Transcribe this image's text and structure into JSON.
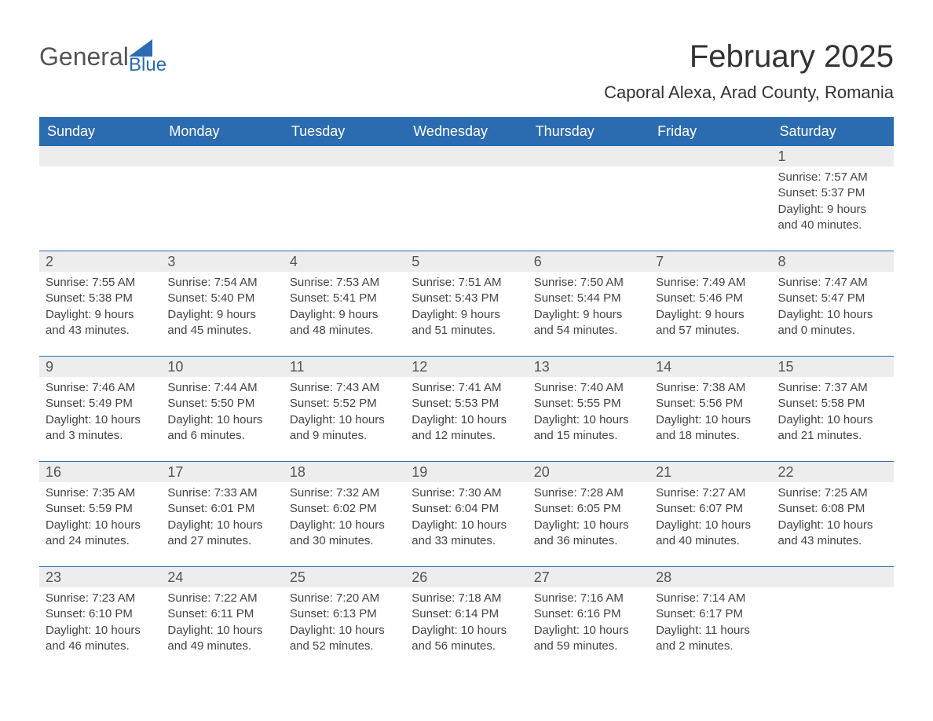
{
  "logo": {
    "part1": "General",
    "part2": "Blue"
  },
  "title": "February 2025",
  "subtitle": "Caporal Alexa, Arad County, Romania",
  "colors": {
    "header_bg": "#2b6cb0",
    "header_text": "#ffffff",
    "daynum_bg": "#ededed",
    "body_text": "#444444",
    "rule": "#2b6cb0",
    "page_bg": "#ffffff"
  },
  "weekdays": [
    "Sunday",
    "Monday",
    "Tuesday",
    "Wednesday",
    "Thursday",
    "Friday",
    "Saturday"
  ],
  "weeks": [
    [
      null,
      null,
      null,
      null,
      null,
      null,
      {
        "n": "1",
        "sr": "Sunrise: 7:57 AM",
        "ss": "Sunset: 5:37 PM",
        "d1": "Daylight: 9 hours",
        "d2": "and 40 minutes."
      }
    ],
    [
      {
        "n": "2",
        "sr": "Sunrise: 7:55 AM",
        "ss": "Sunset: 5:38 PM",
        "d1": "Daylight: 9 hours",
        "d2": "and 43 minutes."
      },
      {
        "n": "3",
        "sr": "Sunrise: 7:54 AM",
        "ss": "Sunset: 5:40 PM",
        "d1": "Daylight: 9 hours",
        "d2": "and 45 minutes."
      },
      {
        "n": "4",
        "sr": "Sunrise: 7:53 AM",
        "ss": "Sunset: 5:41 PM",
        "d1": "Daylight: 9 hours",
        "d2": "and 48 minutes."
      },
      {
        "n": "5",
        "sr": "Sunrise: 7:51 AM",
        "ss": "Sunset: 5:43 PM",
        "d1": "Daylight: 9 hours",
        "d2": "and 51 minutes."
      },
      {
        "n": "6",
        "sr": "Sunrise: 7:50 AM",
        "ss": "Sunset: 5:44 PM",
        "d1": "Daylight: 9 hours",
        "d2": "and 54 minutes."
      },
      {
        "n": "7",
        "sr": "Sunrise: 7:49 AM",
        "ss": "Sunset: 5:46 PM",
        "d1": "Daylight: 9 hours",
        "d2": "and 57 minutes."
      },
      {
        "n": "8",
        "sr": "Sunrise: 7:47 AM",
        "ss": "Sunset: 5:47 PM",
        "d1": "Daylight: 10 hours",
        "d2": "and 0 minutes."
      }
    ],
    [
      {
        "n": "9",
        "sr": "Sunrise: 7:46 AM",
        "ss": "Sunset: 5:49 PM",
        "d1": "Daylight: 10 hours",
        "d2": "and 3 minutes."
      },
      {
        "n": "10",
        "sr": "Sunrise: 7:44 AM",
        "ss": "Sunset: 5:50 PM",
        "d1": "Daylight: 10 hours",
        "d2": "and 6 minutes."
      },
      {
        "n": "11",
        "sr": "Sunrise: 7:43 AM",
        "ss": "Sunset: 5:52 PM",
        "d1": "Daylight: 10 hours",
        "d2": "and 9 minutes."
      },
      {
        "n": "12",
        "sr": "Sunrise: 7:41 AM",
        "ss": "Sunset: 5:53 PM",
        "d1": "Daylight: 10 hours",
        "d2": "and 12 minutes."
      },
      {
        "n": "13",
        "sr": "Sunrise: 7:40 AM",
        "ss": "Sunset: 5:55 PM",
        "d1": "Daylight: 10 hours",
        "d2": "and 15 minutes."
      },
      {
        "n": "14",
        "sr": "Sunrise: 7:38 AM",
        "ss": "Sunset: 5:56 PM",
        "d1": "Daylight: 10 hours",
        "d2": "and 18 minutes."
      },
      {
        "n": "15",
        "sr": "Sunrise: 7:37 AM",
        "ss": "Sunset: 5:58 PM",
        "d1": "Daylight: 10 hours",
        "d2": "and 21 minutes."
      }
    ],
    [
      {
        "n": "16",
        "sr": "Sunrise: 7:35 AM",
        "ss": "Sunset: 5:59 PM",
        "d1": "Daylight: 10 hours",
        "d2": "and 24 minutes."
      },
      {
        "n": "17",
        "sr": "Sunrise: 7:33 AM",
        "ss": "Sunset: 6:01 PM",
        "d1": "Daylight: 10 hours",
        "d2": "and 27 minutes."
      },
      {
        "n": "18",
        "sr": "Sunrise: 7:32 AM",
        "ss": "Sunset: 6:02 PM",
        "d1": "Daylight: 10 hours",
        "d2": "and 30 minutes."
      },
      {
        "n": "19",
        "sr": "Sunrise: 7:30 AM",
        "ss": "Sunset: 6:04 PM",
        "d1": "Daylight: 10 hours",
        "d2": "and 33 minutes."
      },
      {
        "n": "20",
        "sr": "Sunrise: 7:28 AM",
        "ss": "Sunset: 6:05 PM",
        "d1": "Daylight: 10 hours",
        "d2": "and 36 minutes."
      },
      {
        "n": "21",
        "sr": "Sunrise: 7:27 AM",
        "ss": "Sunset: 6:07 PM",
        "d1": "Daylight: 10 hours",
        "d2": "and 40 minutes."
      },
      {
        "n": "22",
        "sr": "Sunrise: 7:25 AM",
        "ss": "Sunset: 6:08 PM",
        "d1": "Daylight: 10 hours",
        "d2": "and 43 minutes."
      }
    ],
    [
      {
        "n": "23",
        "sr": "Sunrise: 7:23 AM",
        "ss": "Sunset: 6:10 PM",
        "d1": "Daylight: 10 hours",
        "d2": "and 46 minutes."
      },
      {
        "n": "24",
        "sr": "Sunrise: 7:22 AM",
        "ss": "Sunset: 6:11 PM",
        "d1": "Daylight: 10 hours",
        "d2": "and 49 minutes."
      },
      {
        "n": "25",
        "sr": "Sunrise: 7:20 AM",
        "ss": "Sunset: 6:13 PM",
        "d1": "Daylight: 10 hours",
        "d2": "and 52 minutes."
      },
      {
        "n": "26",
        "sr": "Sunrise: 7:18 AM",
        "ss": "Sunset: 6:14 PM",
        "d1": "Daylight: 10 hours",
        "d2": "and 56 minutes."
      },
      {
        "n": "27",
        "sr": "Sunrise: 7:16 AM",
        "ss": "Sunset: 6:16 PM",
        "d1": "Daylight: 10 hours",
        "d2": "and 59 minutes."
      },
      {
        "n": "28",
        "sr": "Sunrise: 7:14 AM",
        "ss": "Sunset: 6:17 PM",
        "d1": "Daylight: 11 hours",
        "d2": "and 2 minutes."
      },
      null
    ]
  ]
}
